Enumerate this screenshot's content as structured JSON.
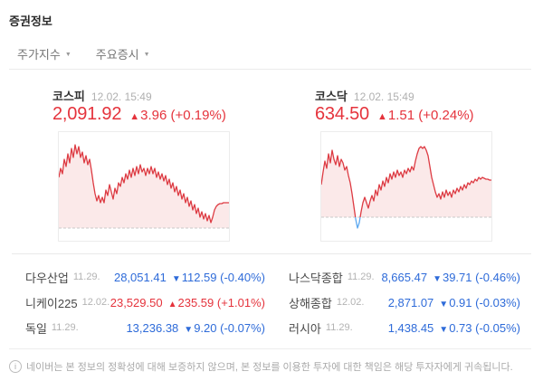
{
  "header": {
    "title": "증권정보"
  },
  "tabs": [
    {
      "label": "주가지수"
    },
    {
      "label": "주요증시"
    }
  ],
  "caret_glyph": "▼",
  "colors": {
    "up": "#e5333c",
    "down": "#2e6bd9",
    "chart_line": "#dd3b43",
    "chart_below_line": "#5ca8f0",
    "chart_fill": "#fbe9e9",
    "chart_baseline": "#c9c9c9"
  },
  "indices": [
    {
      "name": "코스피",
      "datetime": "12.02. 15:49",
      "price": "2,091.92",
      "arrow": "▲",
      "change": "3.96",
      "percent": "(+0.19%)",
      "direction": "up"
    },
    {
      "name": "코스닥",
      "datetime": "12.02. 15:49",
      "price": "634.50",
      "arrow": "▲",
      "change": "1.51",
      "percent": "(+0.24%)",
      "direction": "up"
    }
  ],
  "chart_data": [
    {
      "type": "area",
      "name": "코스피 intraday",
      "x_range": [
        0,
        188
      ],
      "y_range": [
        0,
        120
      ],
      "baseline_y": 106,
      "points": [
        [
          0,
          50
        ],
        [
          2,
          40
        ],
        [
          4,
          46
        ],
        [
          6,
          30
        ],
        [
          8,
          38
        ],
        [
          10,
          24
        ],
        [
          12,
          34
        ],
        [
          14,
          18
        ],
        [
          16,
          28
        ],
        [
          18,
          14
        ],
        [
          20,
          24
        ],
        [
          22,
          16
        ],
        [
          24,
          28
        ],
        [
          26,
          22
        ],
        [
          28,
          34
        ],
        [
          30,
          26
        ],
        [
          32,
          36
        ],
        [
          34,
          30
        ],
        [
          36,
          42
        ],
        [
          38,
          56
        ],
        [
          40,
          68
        ],
        [
          42,
          76
        ],
        [
          44,
          70
        ],
        [
          46,
          78
        ],
        [
          48,
          72
        ],
        [
          50,
          78
        ],
        [
          52,
          64
        ],
        [
          54,
          70
        ],
        [
          56,
          58
        ],
        [
          58,
          66
        ],
        [
          60,
          74
        ],
        [
          62,
          62
        ],
        [
          64,
          68
        ],
        [
          66,
          56
        ],
        [
          68,
          60
        ],
        [
          70,
          50
        ],
        [
          72,
          56
        ],
        [
          74,
          46
        ],
        [
          76,
          52
        ],
        [
          78,
          42
        ],
        [
          80,
          50
        ],
        [
          82,
          40
        ],
        [
          84,
          48
        ],
        [
          86,
          38
        ],
        [
          88,
          46
        ],
        [
          90,
          36
        ],
        [
          92,
          44
        ],
        [
          94,
          40
        ],
        [
          96,
          48
        ],
        [
          98,
          40
        ],
        [
          100,
          46
        ],
        [
          102,
          38
        ],
        [
          104,
          46
        ],
        [
          106,
          40
        ],
        [
          108,
          50
        ],
        [
          110,
          44
        ],
        [
          112,
          52
        ],
        [
          114,
          46
        ],
        [
          116,
          54
        ],
        [
          118,
          48
        ],
        [
          120,
          58
        ],
        [
          122,
          52
        ],
        [
          124,
          62
        ],
        [
          126,
          56
        ],
        [
          128,
          66
        ],
        [
          130,
          60
        ],
        [
          132,
          70
        ],
        [
          134,
          64
        ],
        [
          136,
          74
        ],
        [
          138,
          68
        ],
        [
          140,
          78
        ],
        [
          142,
          72
        ],
        [
          144,
          82
        ],
        [
          146,
          76
        ],
        [
          148,
          86
        ],
        [
          150,
          80
        ],
        [
          152,
          90
        ],
        [
          154,
          84
        ],
        [
          156,
          94
        ],
        [
          158,
          88
        ],
        [
          160,
          96
        ],
        [
          162,
          90
        ],
        [
          164,
          98
        ],
        [
          166,
          92
        ],
        [
          168,
          100
        ],
        [
          170,
          94
        ],
        [
          172,
          86
        ],
        [
          174,
          82
        ],
        [
          176,
          80
        ],
        [
          178,
          79
        ],
        [
          180,
          79
        ],
        [
          182,
          78
        ],
        [
          184,
          78
        ],
        [
          186,
          78
        ],
        [
          188,
          78
        ]
      ]
    },
    {
      "type": "area",
      "name": "코스닥 intraday",
      "x_range": [
        0,
        188
      ],
      "y_range": [
        0,
        120
      ],
      "baseline_y": 94,
      "points": [
        [
          0,
          58
        ],
        [
          2,
          44
        ],
        [
          4,
          32
        ],
        [
          6,
          40
        ],
        [
          8,
          24
        ],
        [
          10,
          34
        ],
        [
          12,
          20
        ],
        [
          14,
          30
        ],
        [
          16,
          36
        ],
        [
          18,
          26
        ],
        [
          20,
          38
        ],
        [
          22,
          30
        ],
        [
          24,
          34
        ],
        [
          26,
          42
        ],
        [
          28,
          38
        ],
        [
          30,
          48
        ],
        [
          32,
          56
        ],
        [
          34,
          68
        ],
        [
          36,
          82
        ],
        [
          38,
          96
        ],
        [
          40,
          106
        ],
        [
          42,
          100
        ],
        [
          44,
          88
        ],
        [
          46,
          78
        ],
        [
          48,
          72
        ],
        [
          50,
          78
        ],
        [
          52,
          84
        ],
        [
          54,
          76
        ],
        [
          56,
          70
        ],
        [
          58,
          76
        ],
        [
          60,
          64
        ],
        [
          62,
          70
        ],
        [
          64,
          58
        ],
        [
          66,
          64
        ],
        [
          68,
          54
        ],
        [
          70,
          60
        ],
        [
          72,
          50
        ],
        [
          74,
          56
        ],
        [
          76,
          46
        ],
        [
          78,
          52
        ],
        [
          80,
          44
        ],
        [
          82,
          50
        ],
        [
          84,
          42
        ],
        [
          86,
          48
        ],
        [
          88,
          44
        ],
        [
          90,
          50
        ],
        [
          92,
          42
        ],
        [
          94,
          46
        ],
        [
          96,
          40
        ],
        [
          98,
          44
        ],
        [
          100,
          38
        ],
        [
          102,
          42
        ],
        [
          104,
          32
        ],
        [
          106,
          24
        ],
        [
          108,
          18
        ],
        [
          110,
          16
        ],
        [
          112,
          18
        ],
        [
          114,
          16
        ],
        [
          116,
          20
        ],
        [
          118,
          26
        ],
        [
          120,
          38
        ],
        [
          122,
          50
        ],
        [
          124,
          58
        ],
        [
          126,
          66
        ],
        [
          128,
          72
        ],
        [
          130,
          68
        ],
        [
          132,
          74
        ],
        [
          134,
          66
        ],
        [
          136,
          72
        ],
        [
          138,
          64
        ],
        [
          140,
          70
        ],
        [
          142,
          66
        ],
        [
          144,
          72
        ],
        [
          146,
          64
        ],
        [
          148,
          68
        ],
        [
          150,
          62
        ],
        [
          152,
          66
        ],
        [
          154,
          60
        ],
        [
          156,
          64
        ],
        [
          158,
          58
        ],
        [
          160,
          62
        ],
        [
          162,
          56
        ],
        [
          164,
          58
        ],
        [
          166,
          54
        ],
        [
          168,
          56
        ],
        [
          170,
          52
        ],
        [
          172,
          54
        ],
        [
          174,
          50
        ],
        [
          176,
          52
        ],
        [
          178,
          50
        ],
        [
          180,
          51
        ],
        [
          182,
          52
        ],
        [
          184,
          52
        ],
        [
          186,
          53
        ],
        [
          188,
          53
        ]
      ]
    }
  ],
  "world": {
    "left": [
      {
        "name": "다우산업",
        "date": "11.29.",
        "value": "28,051.41",
        "arrow": "▼",
        "change": "112.59",
        "percent": "(-0.40%)",
        "direction": "down"
      },
      {
        "name": "니케이225",
        "date": "12.02.",
        "value": "23,529.50",
        "arrow": "▲",
        "change": "235.59",
        "percent": "(+1.01%)",
        "direction": "up"
      },
      {
        "name": "독일",
        "date": "11.29.",
        "value": "13,236.38",
        "arrow": "▼",
        "change": "9.20",
        "percent": "(-0.07%)",
        "direction": "down"
      }
    ],
    "right": [
      {
        "name": "나스닥종합",
        "date": "11.29.",
        "value": "8,665.47",
        "arrow": "▼",
        "change": "39.71",
        "percent": "(-0.46%)",
        "direction": "down"
      },
      {
        "name": "상해종합",
        "date": "12.02.",
        "value": "2,871.07",
        "arrow": "▼",
        "change": "0.91",
        "percent": "(-0.03%)",
        "direction": "down"
      },
      {
        "name": "러시아",
        "date": "11.29.",
        "value": "1,438.45",
        "arrow": "▼",
        "change": "0.73",
        "percent": "(-0.05%)",
        "direction": "down"
      }
    ]
  },
  "footer": {
    "icon_glyph": "i",
    "note": "네이버는 본 정보의 정확성에 대해 보증하지 않으며, 본 정보를 이용한 투자에 대한 책임은 해당 투자자에게 귀속됩니다."
  }
}
